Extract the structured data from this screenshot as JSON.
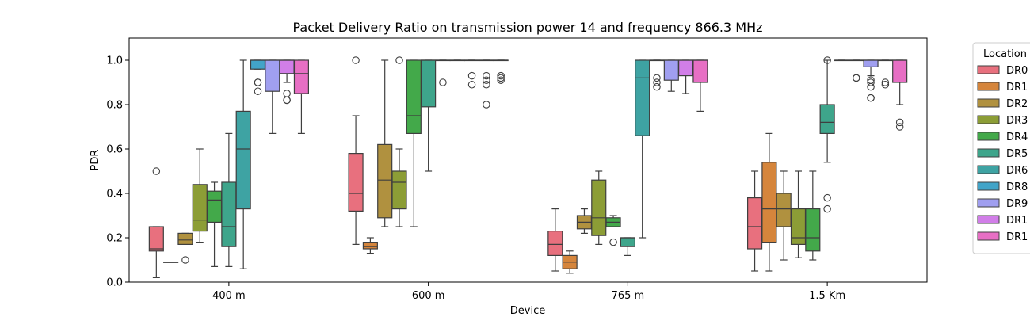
{
  "chart_data": {
    "type": "box",
    "title": "Packet Delivery Ratio on transmission power 14 and frequency 866.3 MHz",
    "xlabel": "Device",
    "ylabel": "PDR",
    "ylim": [
      0.0,
      1.1
    ],
    "yticks": [
      "0.0",
      "0.2",
      "0.4",
      "0.6",
      "0.8",
      "1.0"
    ],
    "categories": [
      "400 m",
      "600 m",
      "765 m",
      "1.5 Km"
    ],
    "legend": {
      "title": "Location",
      "placement": "outside-right"
    },
    "series": [
      {
        "name": "DR0",
        "color": "#e8707e"
      },
      {
        "name": "DR1",
        "color": "#d5853c"
      },
      {
        "name": "DR2",
        "color": "#b0913f"
      },
      {
        "name": "DR3",
        "color": "#8c9d36"
      },
      {
        "name": "DR4",
        "color": "#43a94a"
      },
      {
        "name": "DR5",
        "color": "#3ea58b"
      },
      {
        "name": "DR6",
        "color": "#3ea3a3"
      },
      {
        "name": "DR8",
        "color": "#42a4c8"
      },
      {
        "name": "DR9",
        "color": "#a09ff0"
      },
      {
        "name": "DR1",
        "color": "#d17ee8"
      },
      {
        "name": "DR1",
        "color": "#e76fc4"
      }
    ],
    "boxes": [
      [
        {
          "min": 0.02,
          "q1": 0.14,
          "median": 0.15,
          "q3": 0.25,
          "max": 0.25,
          "outliers": [
            0.5
          ]
        },
        {
          "min": 0.09,
          "q1": 0.09,
          "median": 0.09,
          "q3": 0.09,
          "max": 0.09,
          "outliers": []
        },
        {
          "min": 0.17,
          "q1": 0.17,
          "median": 0.19,
          "q3": 0.22,
          "max": 0.22,
          "outliers": [
            0.1
          ]
        },
        {
          "min": 0.18,
          "q1": 0.23,
          "median": 0.28,
          "q3": 0.44,
          "max": 0.6,
          "outliers": []
        },
        {
          "min": 0.07,
          "q1": 0.27,
          "median": 0.37,
          "q3": 0.41,
          "max": 0.45,
          "outliers": []
        },
        {
          "min": 0.07,
          "q1": 0.16,
          "median": 0.25,
          "q3": 0.45,
          "max": 0.67,
          "outliers": []
        },
        {
          "min": 0.06,
          "q1": 0.33,
          "median": 0.6,
          "q3": 0.77,
          "max": 1.0,
          "outliers": []
        },
        {
          "min": 0.96,
          "q1": 0.96,
          "median": 1.0,
          "q3": 1.0,
          "max": 1.0,
          "outliers": [
            0.9,
            0.9,
            0.86
          ]
        },
        {
          "min": 0.67,
          "q1": 0.86,
          "median": 1.0,
          "q3": 1.0,
          "max": 1.0,
          "outliers": []
        },
        {
          "min": 0.9,
          "q1": 0.94,
          "median": 1.0,
          "q3": 1.0,
          "max": 1.0,
          "outliers": [
            0.85,
            0.82,
            0.82
          ]
        },
        {
          "min": 0.67,
          "q1": 0.85,
          "median": 0.94,
          "q3": 1.0,
          "max": 1.0,
          "outliers": []
        }
      ],
      [
        {
          "min": 0.17,
          "q1": 0.32,
          "median": 0.4,
          "q3": 0.58,
          "max": 0.75,
          "outliers": [
            1.0
          ]
        },
        {
          "min": 0.13,
          "q1": 0.15,
          "median": 0.16,
          "q3": 0.18,
          "max": 0.2,
          "outliers": []
        },
        {
          "min": 0.25,
          "q1": 0.29,
          "median": 0.46,
          "q3": 0.62,
          "max": 1.0,
          "outliers": []
        },
        {
          "min": 0.25,
          "q1": 0.33,
          "median": 0.45,
          "q3": 0.5,
          "max": 0.6,
          "outliers": [
            1.0
          ]
        },
        {
          "min": 0.25,
          "q1": 0.67,
          "median": 0.75,
          "q3": 1.0,
          "max": 1.0,
          "outliers": []
        },
        {
          "min": 0.5,
          "q1": 0.79,
          "median": 1.0,
          "q3": 1.0,
          "max": 1.0,
          "outliers": []
        },
        {
          "min": 1.0,
          "q1": 1.0,
          "median": 1.0,
          "q3": 1.0,
          "max": 1.0,
          "outliers": [
            0.9
          ]
        },
        {
          "min": 1.0,
          "q1": 1.0,
          "median": 1.0,
          "q3": 1.0,
          "max": 1.0,
          "outliers": []
        },
        {
          "min": 1.0,
          "q1": 1.0,
          "median": 1.0,
          "q3": 1.0,
          "max": 1.0,
          "outliers": [
            0.93,
            0.89
          ]
        },
        {
          "min": 1.0,
          "q1": 1.0,
          "median": 1.0,
          "q3": 1.0,
          "max": 1.0,
          "outliers": [
            0.93,
            0.91,
            0.89,
            0.8
          ]
        },
        {
          "min": 1.0,
          "q1": 1.0,
          "median": 1.0,
          "q3": 1.0,
          "max": 1.0,
          "outliers": [
            0.93,
            0.92,
            0.91
          ]
        }
      ],
      [
        {
          "min": 0.05,
          "q1": 0.12,
          "median": 0.17,
          "q3": 0.23,
          "max": 0.33,
          "outliers": []
        },
        {
          "min": 0.04,
          "q1": 0.06,
          "median": 0.09,
          "q3": 0.12,
          "max": 0.14,
          "outliers": []
        },
        {
          "min": 0.22,
          "q1": 0.24,
          "median": 0.27,
          "q3": 0.3,
          "max": 0.33,
          "outliers": []
        },
        {
          "min": 0.17,
          "q1": 0.21,
          "median": 0.29,
          "q3": 0.46,
          "max": 0.5,
          "outliers": []
        },
        {
          "min": 0.25,
          "q1": 0.25,
          "median": 0.27,
          "q3": 0.29,
          "max": 0.3,
          "outliers": [
            0.18
          ]
        },
        {
          "min": 0.12,
          "q1": 0.16,
          "median": 0.2,
          "q3": 0.2,
          "max": 0.2,
          "outliers": []
        },
        {
          "min": 0.2,
          "q1": 0.66,
          "median": 0.92,
          "q3": 1.0,
          "max": 1.0,
          "outliers": []
        },
        {
          "min": 1.0,
          "q1": 1.0,
          "median": 1.0,
          "q3": 1.0,
          "max": 1.0,
          "outliers": [
            0.92,
            0.9,
            0.88
          ]
        },
        {
          "min": 0.86,
          "q1": 0.91,
          "median": 1.0,
          "q3": 1.0,
          "max": 1.0,
          "outliers": []
        },
        {
          "min": 0.85,
          "q1": 0.93,
          "median": 1.0,
          "q3": 1.0,
          "max": 1.0,
          "outliers": []
        },
        {
          "min": 0.77,
          "q1": 0.9,
          "median": 1.0,
          "q3": 1.0,
          "max": 1.0,
          "outliers": []
        }
      ],
      [
        {
          "min": 0.05,
          "q1": 0.15,
          "median": 0.25,
          "q3": 0.38,
          "max": 0.5,
          "outliers": []
        },
        {
          "min": 0.05,
          "q1": 0.18,
          "median": 0.33,
          "q3": 0.54,
          "max": 0.67,
          "outliers": []
        },
        {
          "min": 0.1,
          "q1": 0.25,
          "median": 0.33,
          "q3": 0.4,
          "max": 0.5,
          "outliers": []
        },
        {
          "min": 0.11,
          "q1": 0.17,
          "median": 0.2,
          "q3": 0.33,
          "max": 0.5,
          "outliers": []
        },
        {
          "min": 0.1,
          "q1": 0.14,
          "median": 0.2,
          "q3": 0.33,
          "max": 0.5,
          "outliers": []
        },
        {
          "min": 0.54,
          "q1": 0.67,
          "median": 0.72,
          "q3": 0.8,
          "max": 1.0,
          "outliers": [
            0.38,
            0.33,
            1.0
          ]
        },
        {
          "min": 1.0,
          "q1": 1.0,
          "median": 1.0,
          "q3": 1.0,
          "max": 1.0,
          "outliers": []
        },
        {
          "min": 1.0,
          "q1": 1.0,
          "median": 1.0,
          "q3": 1.0,
          "max": 1.0,
          "outliers": [
            0.92,
            0.92
          ]
        },
        {
          "min": 0.93,
          "q1": 0.97,
          "median": 1.0,
          "q3": 1.0,
          "max": 1.0,
          "outliers": [
            0.91,
            0.9,
            0.88,
            0.83,
            0.83
          ]
        },
        {
          "min": 1.0,
          "q1": 1.0,
          "median": 1.0,
          "q3": 1.0,
          "max": 1.0,
          "outliers": [
            0.9,
            0.89
          ]
        },
        {
          "min": 0.8,
          "q1": 0.9,
          "median": 1.0,
          "q3": 1.0,
          "max": 1.0,
          "outliers": [
            0.72,
            0.7
          ]
        }
      ]
    ]
  }
}
